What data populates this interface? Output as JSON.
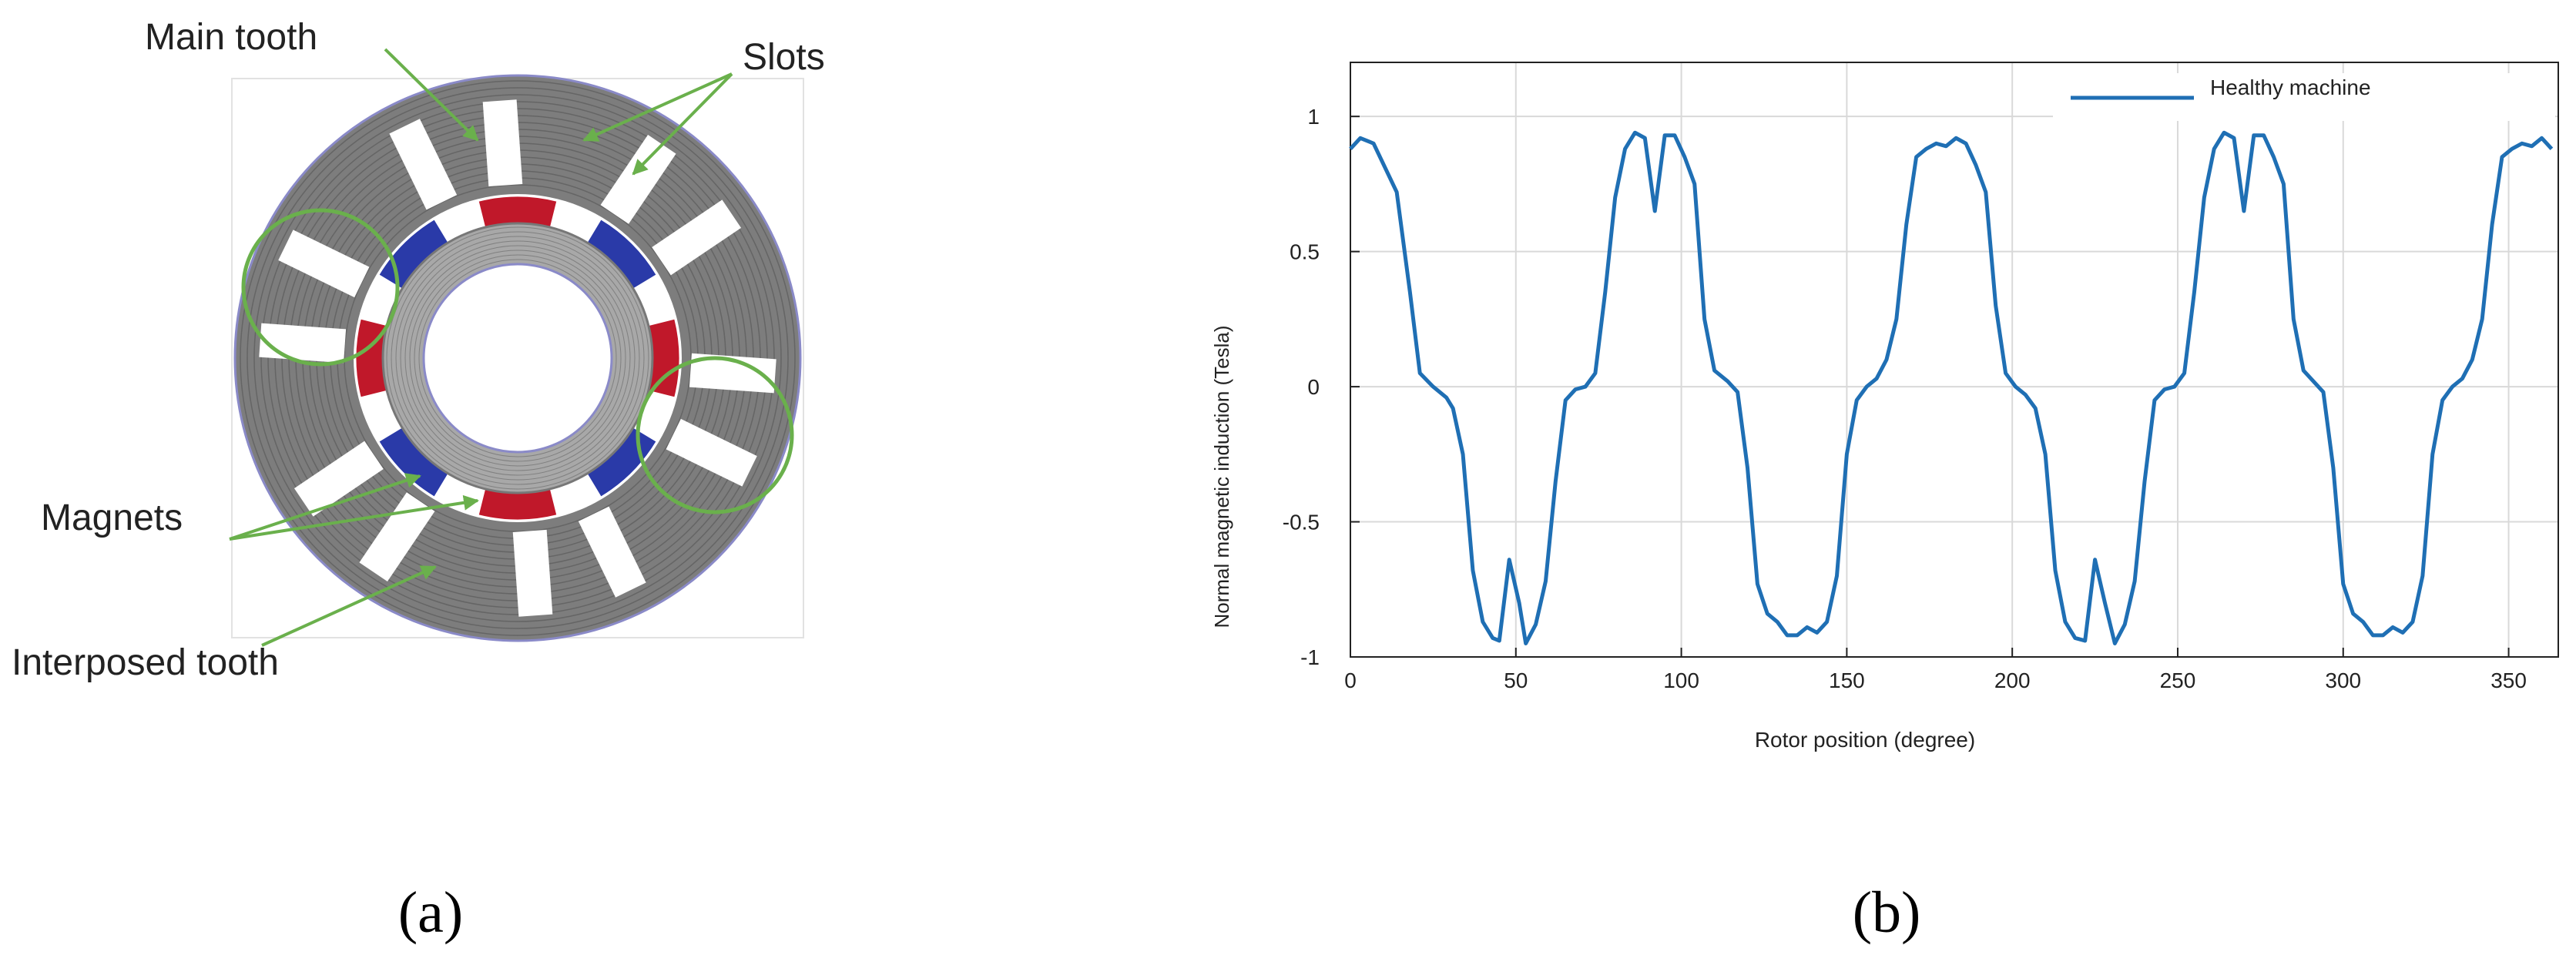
{
  "diagram": {
    "labels": [
      "Main tooth",
      "Slots",
      "Magnets",
      "Interposed tooth"
    ]
  },
  "panels": [
    "(a)",
    "(b)"
  ],
  "chart_data": {
    "type": "line",
    "xlabel": "Rotor position (degree)",
    "ylabel": "Normal magnetic induction (Tesla)",
    "x": [
      0,
      3,
      7,
      14,
      18,
      21,
      25,
      29,
      31,
      34,
      37,
      40,
      43,
      45,
      48,
      51,
      53,
      56,
      59,
      62,
      65,
      68,
      71,
      74,
      77,
      80,
      83,
      86,
      89,
      92,
      95,
      98,
      101,
      104,
      107,
      110,
      114,
      117,
      120,
      123,
      126,
      129,
      132,
      135,
      138,
      141,
      144,
      147,
      150,
      153,
      156,
      159,
      162,
      165,
      168,
      171,
      174,
      177,
      180,
      183,
      186,
      189,
      192,
      195,
      198,
      201,
      204,
      207,
      210,
      213,
      216,
      219,
      222,
      225,
      228,
      231,
      234,
      237,
      240,
      243,
      246,
      249,
      252,
      255,
      258,
      261,
      264,
      267,
      270,
      273,
      276,
      279,
      282,
      285,
      288,
      291,
      294,
      297,
      300,
      303,
      306,
      309,
      312,
      315,
      318,
      321,
      324,
      327,
      330,
      333,
      336,
      339,
      342,
      345,
      348,
      351,
      354,
      357,
      360,
      363
    ],
    "series": [
      {
        "name": "Healthy machine",
        "color": "#1f6fb4",
        "values": [
          0.88,
          0.92,
          0.9,
          0.72,
          0.35,
          0.05,
          0.0,
          -0.04,
          -0.08,
          -0.25,
          -0.68,
          -0.87,
          -0.93,
          -0.94,
          -0.64,
          -0.8,
          -0.95,
          -0.88,
          -0.72,
          -0.35,
          -0.05,
          -0.01,
          0.0,
          0.05,
          0.35,
          0.7,
          0.88,
          0.94,
          0.92,
          0.65,
          0.93,
          0.93,
          0.85,
          0.75,
          0.25,
          0.06,
          0.02,
          -0.02,
          -0.3,
          -0.73,
          -0.84,
          -0.87,
          -0.92,
          -0.92,
          -0.89,
          -0.91,
          -0.87,
          -0.7,
          -0.25,
          -0.05,
          0.0,
          0.03,
          0.1,
          0.25,
          0.6,
          0.85,
          0.88,
          0.9,
          0.89,
          0.92,
          0.9,
          0.82,
          0.72,
          0.3,
          0.05,
          0.0,
          -0.03,
          -0.08,
          -0.25,
          -0.68,
          -0.87,
          -0.93,
          -0.94,
          -0.64,
          -0.8,
          -0.95,
          -0.88,
          -0.72,
          -0.35,
          -0.05,
          -0.01,
          0.0,
          0.05,
          0.35,
          0.7,
          0.88,
          0.94,
          0.92,
          0.65,
          0.93,
          0.93,
          0.85,
          0.75,
          0.25,
          0.06,
          0.02,
          -0.02,
          -0.3,
          -0.73,
          -0.84,
          -0.87,
          -0.92,
          -0.92,
          -0.89,
          -0.91,
          -0.87,
          -0.7,
          -0.25,
          -0.05,
          0.0,
          0.03,
          0.1,
          0.25,
          0.6,
          0.85,
          0.88,
          0.9,
          0.89,
          0.92,
          0.88
        ]
      }
    ],
    "xlim": [
      0,
      365
    ],
    "ylim": [
      -1,
      1.2
    ],
    "xticks": [
      0,
      50,
      100,
      150,
      200,
      250,
      300,
      350
    ],
    "yticks": [
      -1,
      -0.5,
      0,
      0.5,
      1
    ],
    "grid": true,
    "legend": "upper right"
  }
}
